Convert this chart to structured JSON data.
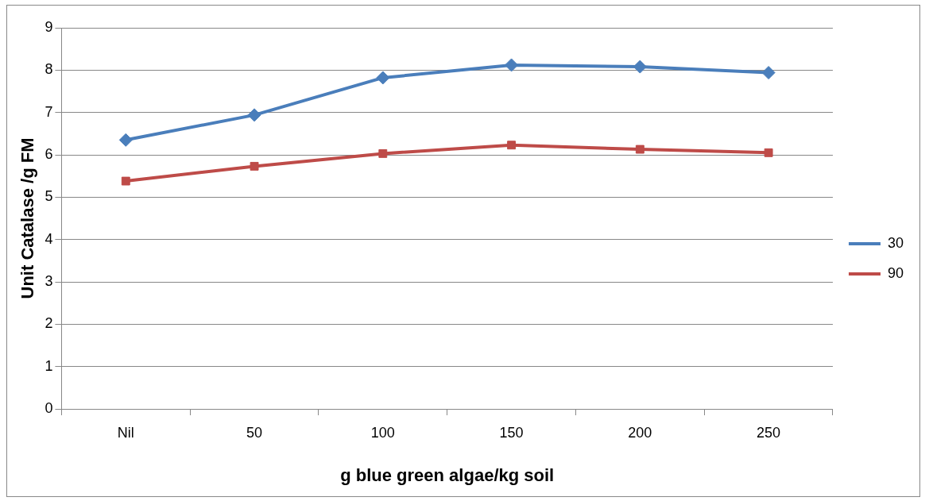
{
  "chart_data": {
    "type": "line",
    "xlabel": "g blue green algae/kg soil",
    "ylabel": "Unit Catalase /g FM",
    "categories": [
      "Nil",
      "50",
      "100",
      "150",
      "200",
      "250"
    ],
    "series": [
      {
        "name": "30",
        "color": "#4a7ebb",
        "marker": "diamond",
        "values": [
          6.35,
          6.94,
          7.82,
          8.12,
          8.08,
          7.94
        ]
      },
      {
        "name": "90",
        "color": "#be4b48",
        "marker": "square",
        "values": [
          5.38,
          5.73,
          6.03,
          6.23,
          6.13,
          6.05
        ]
      }
    ],
    "ylim": [
      0,
      9
    ],
    "yticks": [
      0,
      1,
      2,
      3,
      4,
      5,
      6,
      7,
      8,
      9
    ],
    "grid": "y",
    "legend": "right",
    "line_style": "solid"
  }
}
